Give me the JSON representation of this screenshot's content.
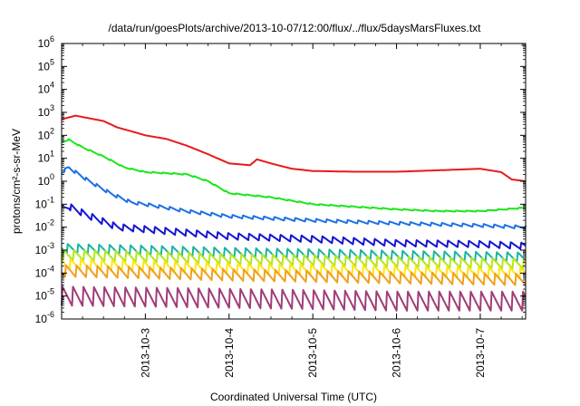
{
  "chart_data": {
    "type": "line",
    "title": "/data/run/goesPlots/archive/2013-10-07/12:00/flux/../flux/5daysMarsFluxes.txt",
    "xlabel": "Coordinated Universal Time (UTC)",
    "ylabel": "protons/cm²-s-sr-MeV",
    "x_range": [
      "2013-10-02 00:00",
      "2013-10-07 13:00"
    ],
    "x_ticks": [
      "2013-10-3",
      "2013-10-4",
      "2013-10-5",
      "2013-10-6",
      "2013-10-7"
    ],
    "y_scale": "log",
    "y_range": [
      1e-06,
      1000000.0
    ],
    "y_ticks": [
      {
        "base": "10",
        "exp": "-6"
      },
      {
        "base": "10",
        "exp": "-5"
      },
      {
        "base": "10",
        "exp": "-4"
      },
      {
        "base": "10",
        "exp": "-3"
      },
      {
        "base": "10",
        "exp": "-2"
      },
      {
        "base": "10",
        "exp": "-1"
      },
      {
        "base": "10",
        "exp": "0"
      },
      {
        "base": "10",
        "exp": "1"
      },
      {
        "base": "10",
        "exp": "2"
      },
      {
        "base": "10",
        "exp": "3"
      },
      {
        "base": "10",
        "exp": "4"
      },
      {
        "base": "10",
        "exp": "5"
      },
      {
        "base": "10",
        "exp": "6"
      }
    ],
    "grid": false,
    "legend": "none",
    "series": [
      {
        "color": "#e8191b",
        "sawtooth": {
          "spike_factor": 1.0
        },
        "points": [
          [
            "2013-10-02 00:00",
            500
          ],
          [
            "2013-10-02 04:00",
            720
          ],
          [
            "2013-10-02 08:00",
            550
          ],
          [
            "2013-10-02 12:00",
            420
          ],
          [
            "2013-10-02 16:00",
            220
          ],
          [
            "2013-10-02 20:00",
            150
          ],
          [
            "2013-10-03 00:00",
            100
          ],
          [
            "2013-10-03 06:00",
            70
          ],
          [
            "2013-10-03 12:00",
            35
          ],
          [
            "2013-10-03 18:00",
            15
          ],
          [
            "2013-10-04 00:00",
            6
          ],
          [
            "2013-10-04 06:00",
            5
          ],
          [
            "2013-10-04 08:00",
            9
          ],
          [
            "2013-10-04 12:00",
            6
          ],
          [
            "2013-10-04 18:00",
            3.5
          ],
          [
            "2013-10-05 00:00",
            2.8
          ],
          [
            "2013-10-05 12:00",
            2.6
          ],
          [
            "2013-10-06 00:00",
            2.6
          ],
          [
            "2013-10-06 12:00",
            3.0
          ],
          [
            "2013-10-07 00:00",
            3.5
          ],
          [
            "2013-10-07 06:00",
            2.5
          ],
          [
            "2013-10-07 09:00",
            1.2
          ],
          [
            "2013-10-07 13:00",
            1.0
          ]
        ]
      },
      {
        "color": "#19e619",
        "sawtooth": {
          "spike_factor": 1.12
        },
        "points": [
          [
            "2013-10-02 00:00",
            50
          ],
          [
            "2013-10-02 02:00",
            65
          ],
          [
            "2013-10-02 06:00",
            30
          ],
          [
            "2013-10-02 12:00",
            12
          ],
          [
            "2013-10-02 18:00",
            4
          ],
          [
            "2013-10-03 00:00",
            2.5
          ],
          [
            "2013-10-03 12:00",
            2.0
          ],
          [
            "2013-10-03 18:00",
            1.0
          ],
          [
            "2013-10-04 00:00",
            0.3
          ],
          [
            "2013-10-04 12:00",
            0.2
          ],
          [
            "2013-10-05 00:00",
            0.1
          ],
          [
            "2013-10-06 00:00",
            0.06
          ],
          [
            "2013-10-06 12:00",
            0.05
          ],
          [
            "2013-10-07 00:00",
            0.05
          ],
          [
            "2013-10-07 13:00",
            0.07
          ]
        ]
      },
      {
        "color": "#1c70e6",
        "sawtooth": {
          "spike_factor": 1.4
        },
        "points": [
          [
            "2013-10-02 00:00",
            2.5
          ],
          [
            "2013-10-02 02:00",
            4
          ],
          [
            "2013-10-02 08:00",
            1.0
          ],
          [
            "2013-10-02 14:00",
            0.3
          ],
          [
            "2013-10-02 20:00",
            0.12
          ],
          [
            "2013-10-03 00:00",
            0.1
          ],
          [
            "2013-10-03 12:00",
            0.05
          ],
          [
            "2013-10-04 00:00",
            0.03
          ],
          [
            "2013-10-05 00:00",
            0.02
          ],
          [
            "2013-10-06 00:00",
            0.015
          ],
          [
            "2013-10-07 00:00",
            0.012
          ],
          [
            "2013-10-07 13:00",
            0.01
          ]
        ]
      },
      {
        "color": "#1414d2",
        "sawtooth": {
          "spike_factor": 2.0
        },
        "points": [
          [
            "2013-10-02 00:00",
            0.06
          ],
          [
            "2013-10-02 02:00",
            0.08
          ],
          [
            "2013-10-02 08:00",
            0.03
          ],
          [
            "2013-10-02 16:00",
            0.01
          ],
          [
            "2013-10-03 00:00",
            0.008
          ],
          [
            "2013-10-04 00:00",
            0.004
          ],
          [
            "2013-10-05 00:00",
            0.003
          ],
          [
            "2013-10-06 00:00",
            0.002
          ],
          [
            "2013-10-07 00:00",
            0.0018
          ],
          [
            "2013-10-07 13:00",
            0.0015
          ]
        ]
      },
      {
        "color": "#19b4a0",
        "sawtooth": {
          "spike_factor": 2.8
        },
        "points": [
          [
            "2013-10-02 00:00",
            0.0012
          ],
          [
            "2013-10-03 00:00",
            0.001
          ],
          [
            "2013-10-04 00:00",
            0.0008
          ],
          [
            "2013-10-05 00:00",
            0.0007
          ],
          [
            "2013-10-06 00:00",
            0.0006
          ],
          [
            "2013-10-07 13:00",
            0.0005
          ]
        ]
      },
      {
        "color": "#b4e61e",
        "sawtooth": {
          "spike_factor": 3.0
        },
        "points": [
          [
            "2013-10-02 00:00",
            0.0006
          ],
          [
            "2013-10-03 00:00",
            0.0005
          ],
          [
            "2013-10-04 00:00",
            0.0004
          ],
          [
            "2013-10-05 00:00",
            0.00035
          ],
          [
            "2013-10-06 00:00",
            0.0003
          ],
          [
            "2013-10-07 13:00",
            0.00025
          ]
        ]
      },
      {
        "color": "#ffe614",
        "sawtooth": {
          "spike_factor": 3.2
        },
        "points": [
          [
            "2013-10-02 00:00",
            0.00025
          ],
          [
            "2013-10-03 00:00",
            0.0002
          ],
          [
            "2013-10-04 00:00",
            0.00016
          ],
          [
            "2013-10-05 00:00",
            0.00014
          ],
          [
            "2013-10-06 00:00",
            0.00012
          ],
          [
            "2013-10-07 13:00",
            0.0001
          ]
        ]
      },
      {
        "color": "#f0a01e",
        "sawtooth": {
          "spike_factor": 3.5
        },
        "points": [
          [
            "2013-10-02 00:00",
            0.00012
          ],
          [
            "2013-10-03 00:00",
            0.0001
          ],
          [
            "2013-10-04 00:00",
            8e-05
          ],
          [
            "2013-10-05 00:00",
            7e-05
          ],
          [
            "2013-10-06 00:00",
            6e-05
          ],
          [
            "2013-10-07 13:00",
            5e-05
          ]
        ]
      },
      {
        "color": "#a03c78",
        "sawtooth": {
          "spike_factor": 8.0
        },
        "points": [
          [
            "2013-10-02 00:00",
            1e-05
          ],
          [
            "2013-10-03 00:00",
            9e-06
          ],
          [
            "2013-10-04 00:00",
            8e-06
          ],
          [
            "2013-10-05 00:00",
            7e-06
          ],
          [
            "2013-10-06 00:00",
            6e-06
          ],
          [
            "2013-10-07 13:00",
            6e-06
          ]
        ]
      }
    ]
  }
}
